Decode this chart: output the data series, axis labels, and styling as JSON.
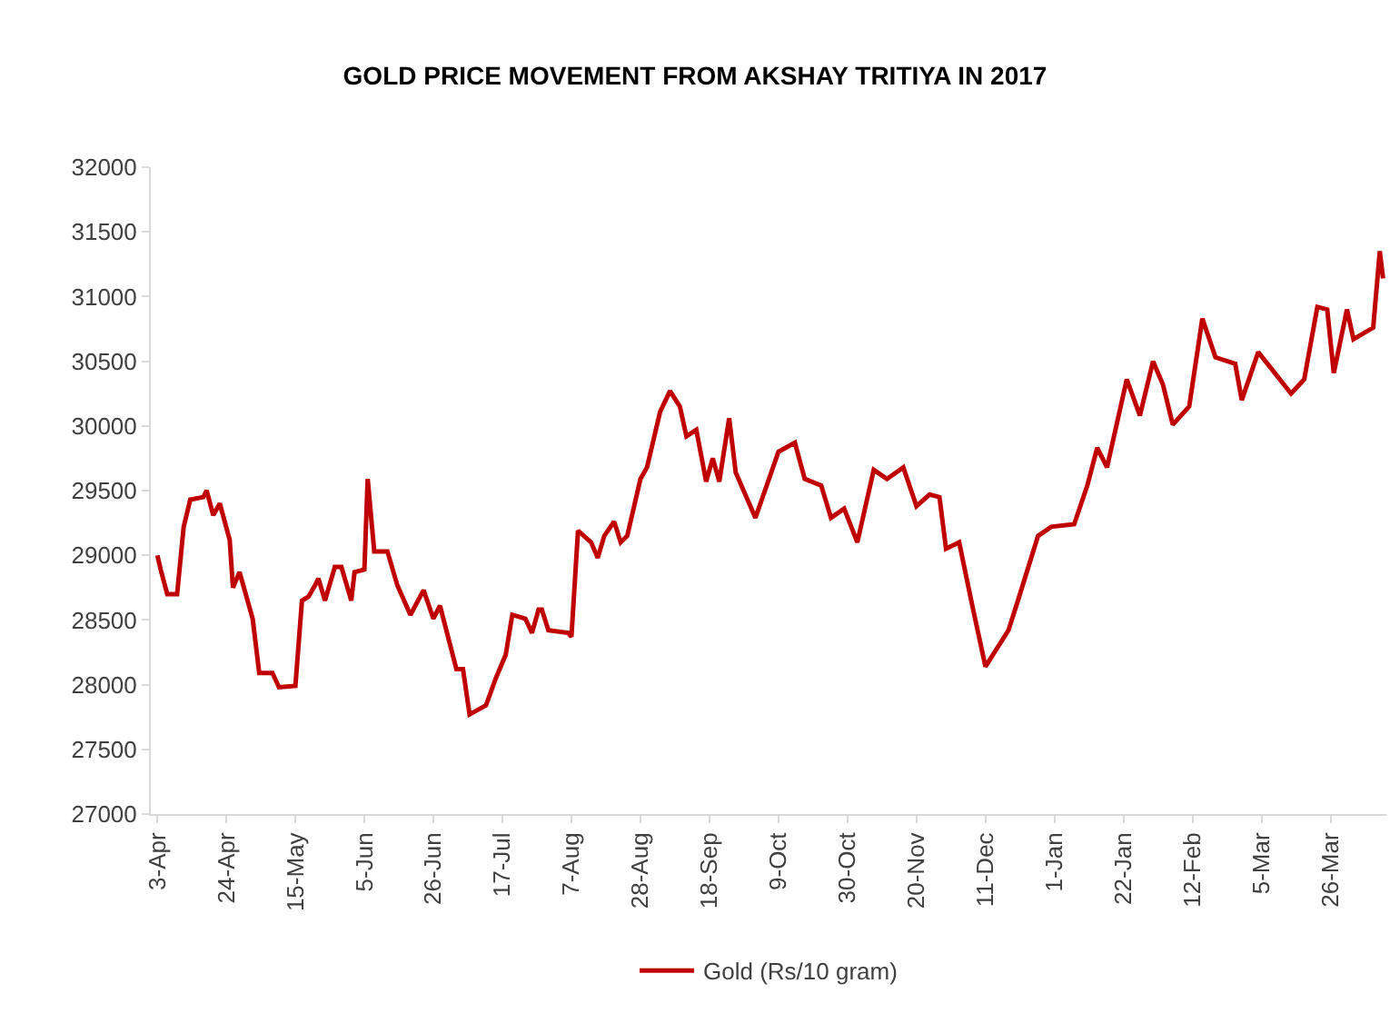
{
  "chart_data": {
    "type": "line",
    "title": "GOLD PRICE MOVEMENT FROM AKSHAY TRITIYA IN 2017",
    "x": [
      "2017-04-03",
      "2017-04-04",
      "2017-04-06",
      "2017-04-09",
      "2017-04-11",
      "2017-04-13",
      "2017-04-17",
      "2017-04-18",
      "2017-04-20",
      "2017-04-22",
      "2017-04-25",
      "2017-04-26",
      "2017-04-28",
      "2017-05-02",
      "2017-05-04",
      "2017-05-08",
      "2017-05-10",
      "2017-05-15",
      "2017-05-17",
      "2017-05-19",
      "2017-05-21",
      "2017-05-22",
      "2017-05-24",
      "2017-05-27",
      "2017-05-29",
      "2017-06-01",
      "2017-06-02",
      "2017-06-05",
      "2017-06-06",
      "2017-06-08",
      "2017-06-12",
      "2017-06-15",
      "2017-06-19",
      "2017-06-23",
      "2017-06-26",
      "2017-06-28",
      "2017-07-03",
      "2017-07-05",
      "2017-07-07",
      "2017-07-12",
      "2017-07-15",
      "2017-07-18",
      "2017-07-20",
      "2017-07-24",
      "2017-07-26",
      "2017-07-28",
      "2017-07-29",
      "2017-07-31",
      "2017-08-06",
      "2017-08-07",
      "2017-08-09",
      "2017-08-13",
      "2017-08-15",
      "2017-08-17",
      "2017-08-20",
      "2017-08-22",
      "2017-08-24",
      "2017-08-28",
      "2017-08-30",
      "2017-09-03",
      "2017-09-06",
      "2017-09-09",
      "2017-09-11",
      "2017-09-14",
      "2017-09-17",
      "2017-09-19",
      "2017-09-21",
      "2017-09-24",
      "2017-09-26",
      "2017-10-02",
      "2017-10-09",
      "2017-10-14",
      "2017-10-17",
      "2017-10-22",
      "2017-10-25",
      "2017-10-29",
      "2017-11-02",
      "2017-11-07",
      "2017-11-11",
      "2017-11-16",
      "2017-11-20",
      "2017-11-24",
      "2017-11-27",
      "2017-11-29",
      "2017-12-03",
      "2017-12-07",
      "2017-12-11",
      "2017-12-18",
      "2017-12-21",
      "2017-12-27",
      "2017-12-31",
      "2018-01-07",
      "2018-01-11",
      "2018-01-14",
      "2018-01-17",
      "2018-01-23",
      "2018-01-27",
      "2018-01-31",
      "2018-02-03",
      "2018-02-06",
      "2018-02-11",
      "2018-02-15",
      "2018-02-19",
      "2018-02-25",
      "2018-02-27",
      "2018-03-04",
      "2018-03-09",
      "2018-03-14",
      "2018-03-18",
      "2018-03-22",
      "2018-03-25",
      "2018-03-27",
      "2018-03-31",
      "2018-04-02",
      "2018-04-08",
      "2018-04-10",
      "2018-04-11"
    ],
    "series": [
      {
        "name": "Gold (Rs/10 gram)",
        "color": "#c00000",
        "values": [
          29000,
          28890,
          28700,
          28700,
          29220,
          29430,
          29450,
          29500,
          29310,
          29400,
          29120,
          28750,
          28870,
          28510,
          28090,
          28090,
          27980,
          27990,
          28650,
          28680,
          28770,
          28820,
          28650,
          28910,
          28910,
          28650,
          28870,
          28890,
          29590,
          29030,
          29030,
          28770,
          28540,
          28730,
          28510,
          28610,
          28120,
          28120,
          27770,
          27840,
          28050,
          28230,
          28540,
          28510,
          28400,
          28580,
          28580,
          28420,
          28400,
          28370,
          29190,
          29100,
          28980,
          29150,
          29260,
          29100,
          29150,
          29590,
          29680,
          30110,
          30270,
          30150,
          29920,
          29970,
          29570,
          29750,
          29570,
          30060,
          29640,
          29290,
          29800,
          29870,
          29590,
          29540,
          29290,
          29360,
          29100,
          29660,
          29590,
          29680,
          29380,
          29470,
          29450,
          29050,
          29100,
          28610,
          28140,
          28420,
          28660,
          29150,
          29220,
          29240,
          29540,
          29830,
          29680,
          30360,
          30080,
          30500,
          30320,
          30010,
          30150,
          30830,
          30530,
          30480,
          30200,
          30570,
          30410,
          30250,
          30360,
          30920,
          30900,
          30410,
          30900,
          30670,
          30760,
          31350,
          31140
        ]
      }
    ],
    "xlim": [
      "2017-04-01",
      "2018-04-12"
    ],
    "xticks": [
      {
        "value": "2017-04-03",
        "label": "3-Apr"
      },
      {
        "value": "2017-04-24",
        "label": "24-Apr"
      },
      {
        "value": "2017-05-15",
        "label": "15-May"
      },
      {
        "value": "2017-06-05",
        "label": "5-Jun"
      },
      {
        "value": "2017-06-26",
        "label": "26-Jun"
      },
      {
        "value": "2017-07-17",
        "label": "17-Jul"
      },
      {
        "value": "2017-08-07",
        "label": "7-Aug"
      },
      {
        "value": "2017-08-28",
        "label": "28-Aug"
      },
      {
        "value": "2017-09-18",
        "label": "18-Sep"
      },
      {
        "value": "2017-10-09",
        "label": "9-Oct"
      },
      {
        "value": "2017-10-30",
        "label": "30-Oct"
      },
      {
        "value": "2017-11-20",
        "label": "20-Nov"
      },
      {
        "value": "2017-12-11",
        "label": "11-Dec"
      },
      {
        "value": "2018-01-01",
        "label": "1-Jan"
      },
      {
        "value": "2018-01-22",
        "label": "22-Jan"
      },
      {
        "value": "2018-02-12",
        "label": "12-Feb"
      },
      {
        "value": "2018-03-05",
        "label": "5-Mar"
      },
      {
        "value": "2018-03-26",
        "label": "26-Mar"
      }
    ],
    "ylim": [
      27000,
      32000
    ],
    "yticks": [
      27000,
      27500,
      28000,
      28500,
      29000,
      29500,
      30000,
      30500,
      31000,
      31500,
      32000
    ],
    "grid": false,
    "legend": "bottom",
    "marker": "none",
    "line_style": "solid"
  }
}
